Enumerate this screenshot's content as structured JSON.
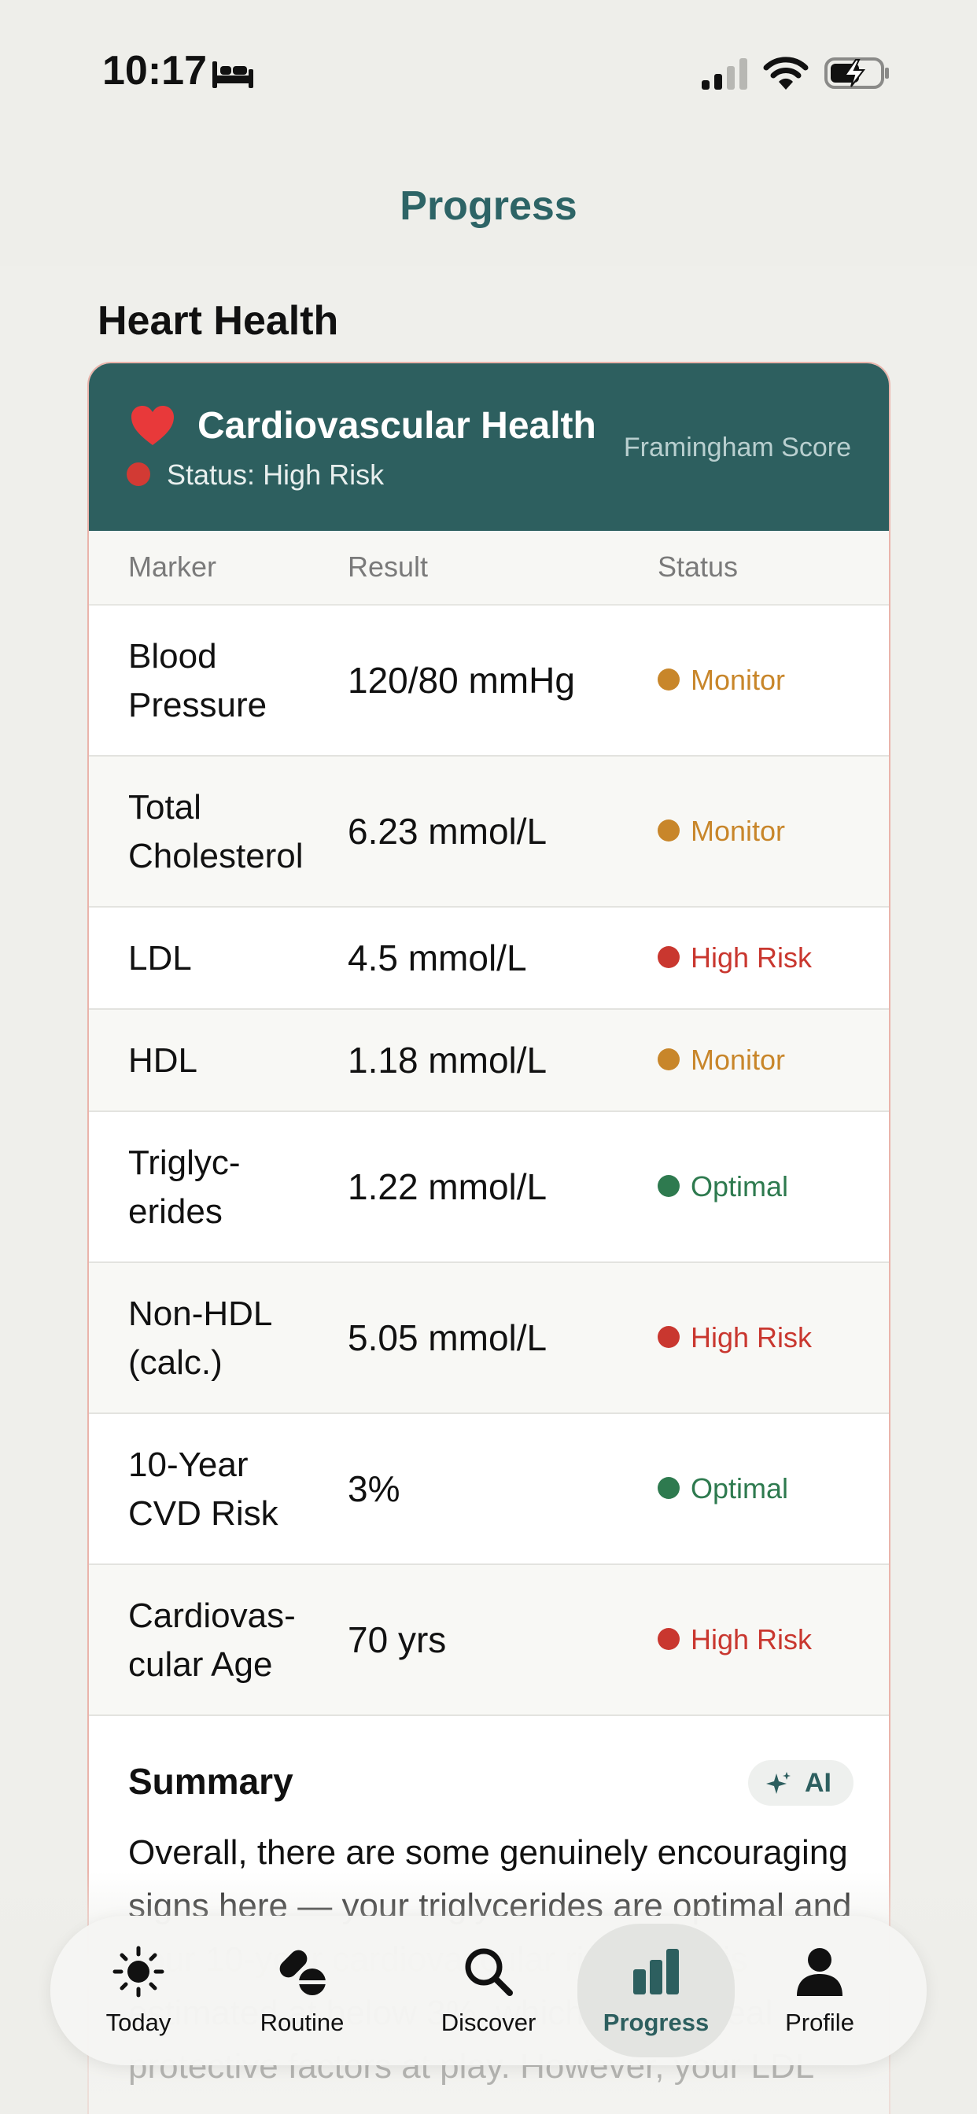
{
  "status_bar": {
    "time": "10:17"
  },
  "header": {
    "title": "Progress"
  },
  "section": {
    "title": "Heart Health"
  },
  "card": {
    "title": "Cardiovascular Health",
    "status": "Status: High Risk",
    "score_label": "Framingham Score",
    "columns": {
      "marker": "Marker",
      "result": "Result",
      "status": "Status"
    },
    "rows": [
      {
        "marker_line1": "Blood",
        "marker_line2": "Pressure",
        "result": "120/80 mmHg",
        "status": "Monitor",
        "status_color": "#c8862a"
      },
      {
        "marker_line1": "Total",
        "marker_line2": "Cholesterol",
        "result": "6.23 mmol/L",
        "status": "Monitor",
        "status_color": "#c8862a"
      },
      {
        "marker_line1": "LDL",
        "marker_line2": "",
        "result": "4.5 mmol/L",
        "status": "High Risk",
        "status_color": "#c9372f"
      },
      {
        "marker_line1": "HDL",
        "marker_line2": "",
        "result": "1.18 mmol/L",
        "status": "Monitor",
        "status_color": "#c8862a"
      },
      {
        "marker_line1": "Triglyc-",
        "marker_line2": "erides",
        "result": "1.22 mmol/L",
        "status": "Optimal",
        "status_color": "#2e7a4f"
      },
      {
        "marker_line1": "Non-HDL",
        "marker_line2": "(calc.)",
        "result": "5.05 mmol/L",
        "status": "High Risk",
        "status_color": "#c9372f"
      },
      {
        "marker_line1": "10-Year",
        "marker_line2": "CVD Risk",
        "result": "3%",
        "status": "Optimal",
        "status_color": "#2e7a4f"
      },
      {
        "marker_line1": "Cardiovas-",
        "marker_line2": "cular Age",
        "result": "70 yrs",
        "status": "High Risk",
        "status_color": "#c9372f"
      }
    ],
    "summary": {
      "title": "Summary",
      "ai_label": "AI",
      "body": "Overall, there are some genuinely encouraging signs here — your triglycerides are optimal and your 10-year cardiovascular risk score is estimated at below 3%, which reflects real protective factors at play. However, your LDL"
    }
  },
  "tabs": [
    {
      "label": "Today",
      "icon": "sun-icon"
    },
    {
      "label": "Routine",
      "icon": "pills-icon"
    },
    {
      "label": "Discover",
      "icon": "search-icon"
    },
    {
      "label": "Progress",
      "icon": "bar-chart-icon",
      "active": true
    },
    {
      "label": "Profile",
      "icon": "person-icon"
    }
  ],
  "colors": {
    "brand": "#2d5f5f",
    "high_risk": "#c9372f",
    "monitor": "#c8862a",
    "optimal": "#2e7a4f"
  }
}
